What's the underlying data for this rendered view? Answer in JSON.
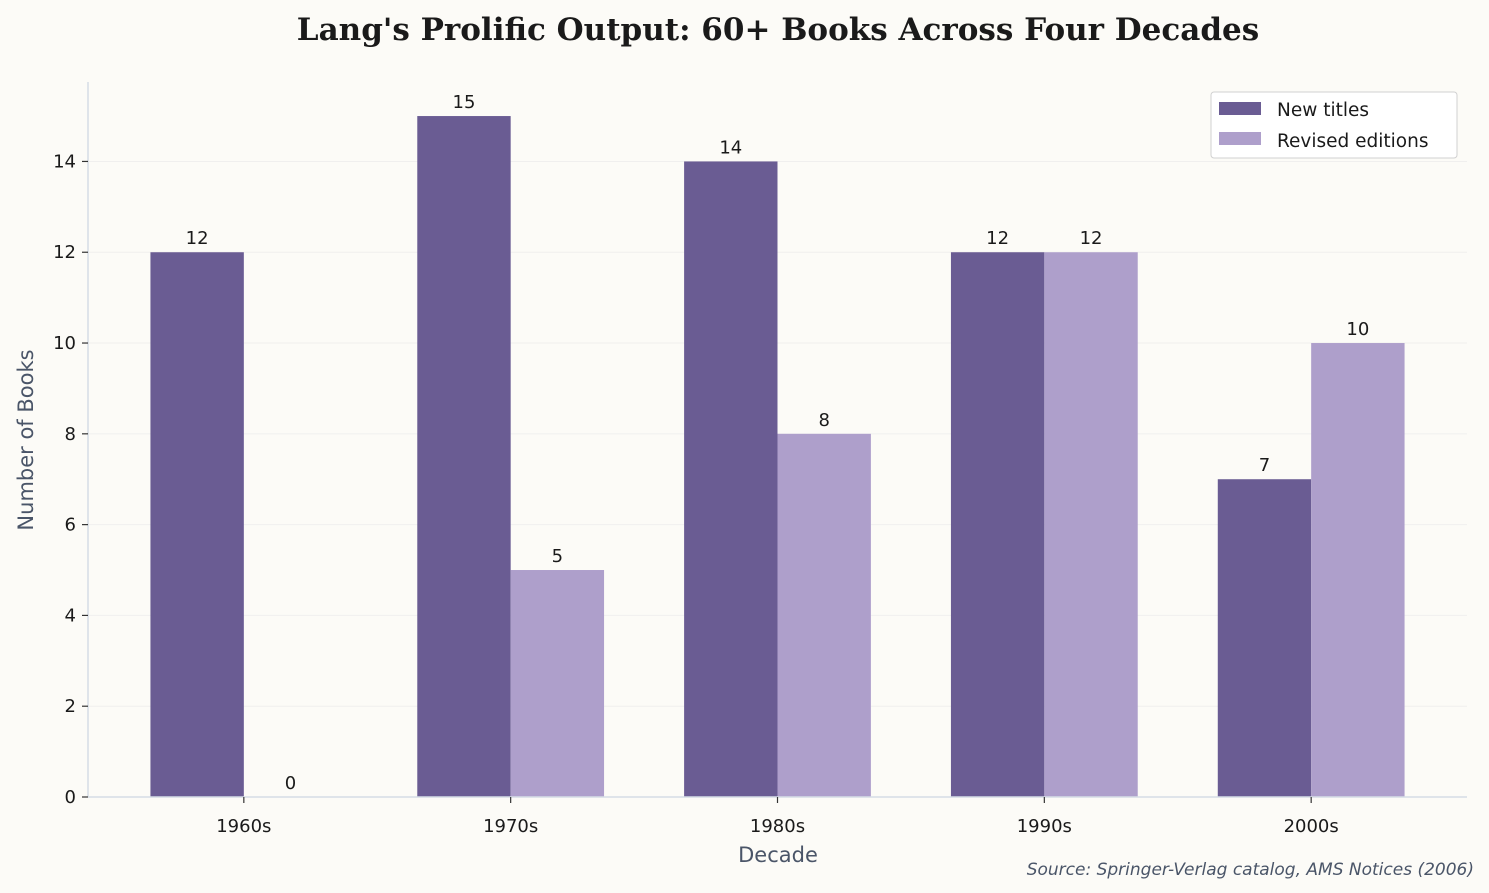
{
  "chart_data": {
    "type": "bar",
    "title": "Lang's Prolific Output: 60+ Books Across Four Decades",
    "xlabel": "Decade",
    "ylabel": "Number of Books",
    "categories": [
      "1960s",
      "1970s",
      "1980s",
      "1990s",
      "2000s"
    ],
    "series": [
      {
        "name": "New titles",
        "values": [
          12,
          15,
          14,
          12,
          7
        ],
        "color": "#6a5c93"
      },
      {
        "name": "Revised editions",
        "values": [
          0,
          5,
          8,
          12,
          10
        ],
        "color": "#ae9fcb"
      }
    ],
    "ylim": [
      0,
      15.75
    ],
    "yticks": [
      0,
      2,
      4,
      6,
      8,
      10,
      12,
      14
    ],
    "grid": true,
    "legend_position": "top-right",
    "annotation": "Source: Springer-Verlag catalog, AMS Notices (2006)"
  }
}
